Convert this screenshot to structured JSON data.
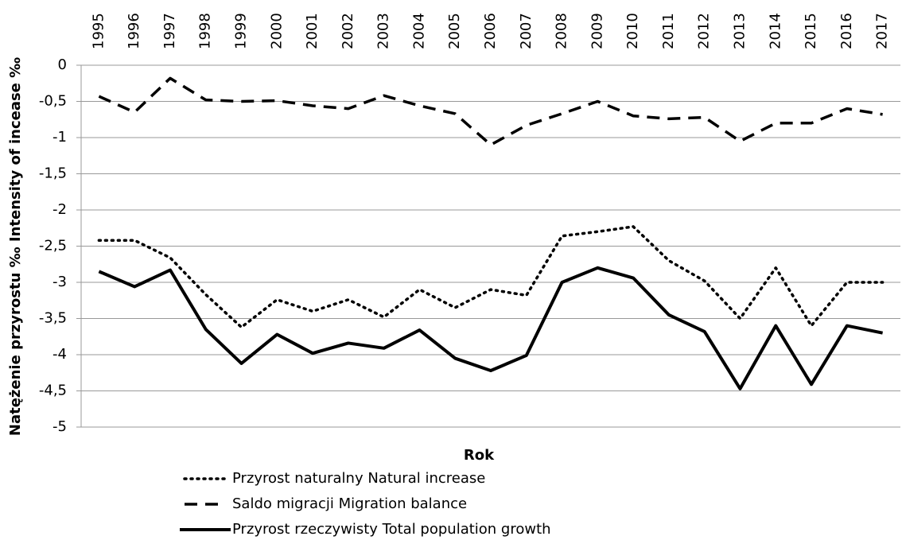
{
  "chart_data": {
    "type": "line",
    "x_label": "Rok",
    "y_label": "Natężenie przyrostu  ‰ Intensity of incease ‰",
    "categories": [
      "1995",
      "1996",
      "1997",
      "1998",
      "1999",
      "2000",
      "2001",
      "2002",
      "2003",
      "2004",
      "2005",
      "2006",
      "2007",
      "2008",
      "2009",
      "2010",
      "2011",
      "2012",
      "2013",
      "2014",
      "2015",
      "2016",
      "2017"
    ],
    "ylim": [
      -5,
      0
    ],
    "yticks": [
      {
        "value": 0,
        "label": "0"
      },
      {
        "value": -0.5,
        "label": "-0,5"
      },
      {
        "value": -1,
        "label": "-1"
      },
      {
        "value": -1.5,
        "label": "-1,5"
      },
      {
        "value": -2,
        "label": "-2"
      },
      {
        "value": -2.5,
        "label": "-2,5"
      },
      {
        "value": -3,
        "label": "-3"
      },
      {
        "value": -3.5,
        "label": "-3,5"
      },
      {
        "value": -4,
        "label": "-4"
      },
      {
        "value": -4.5,
        "label": "-4,5"
      },
      {
        "value": -5,
        "label": "-5"
      }
    ],
    "grid": true,
    "series": [
      {
        "name": "Przyrost naturalny Natural increase",
        "color": "#000000",
        "style": "dotted",
        "values": [
          -2.42,
          -2.42,
          -2.66,
          -3.17,
          -3.62,
          -3.24,
          -3.4,
          -3.24,
          -3.48,
          -3.1,
          -3.35,
          -3.1,
          -3.18,
          -2.36,
          -2.3,
          -2.23,
          -2.7,
          -2.98,
          -3.5,
          -2.8,
          -3.6,
          -3.0,
          -3.0
        ]
      },
      {
        "name": "Saldo migracji Migration balance",
        "color": "#000000",
        "style": "dashed",
        "values": [
          -0.43,
          -0.65,
          -0.18,
          -0.48,
          -0.5,
          -0.49,
          -0.56,
          -0.6,
          -0.42,
          -0.56,
          -0.67,
          -1.1,
          -0.83,
          -0.67,
          -0.5,
          -0.7,
          -0.74,
          -0.72,
          -1.05,
          -0.8,
          -0.8,
          -0.6,
          -0.68
        ]
      },
      {
        "name": "Przyrost rzeczywisty Total population growth",
        "color": "#000000",
        "style": "solid",
        "values": [
          -2.85,
          -3.06,
          -2.83,
          -3.65,
          -4.12,
          -3.72,
          -3.98,
          -3.84,
          -3.91,
          -3.66,
          -4.05,
          -4.22,
          -4.01,
          -3.0,
          -2.8,
          -2.94,
          -3.45,
          -3.68,
          -4.47,
          -3.6,
          -4.41,
          -3.6,
          -3.7
        ]
      }
    ]
  }
}
